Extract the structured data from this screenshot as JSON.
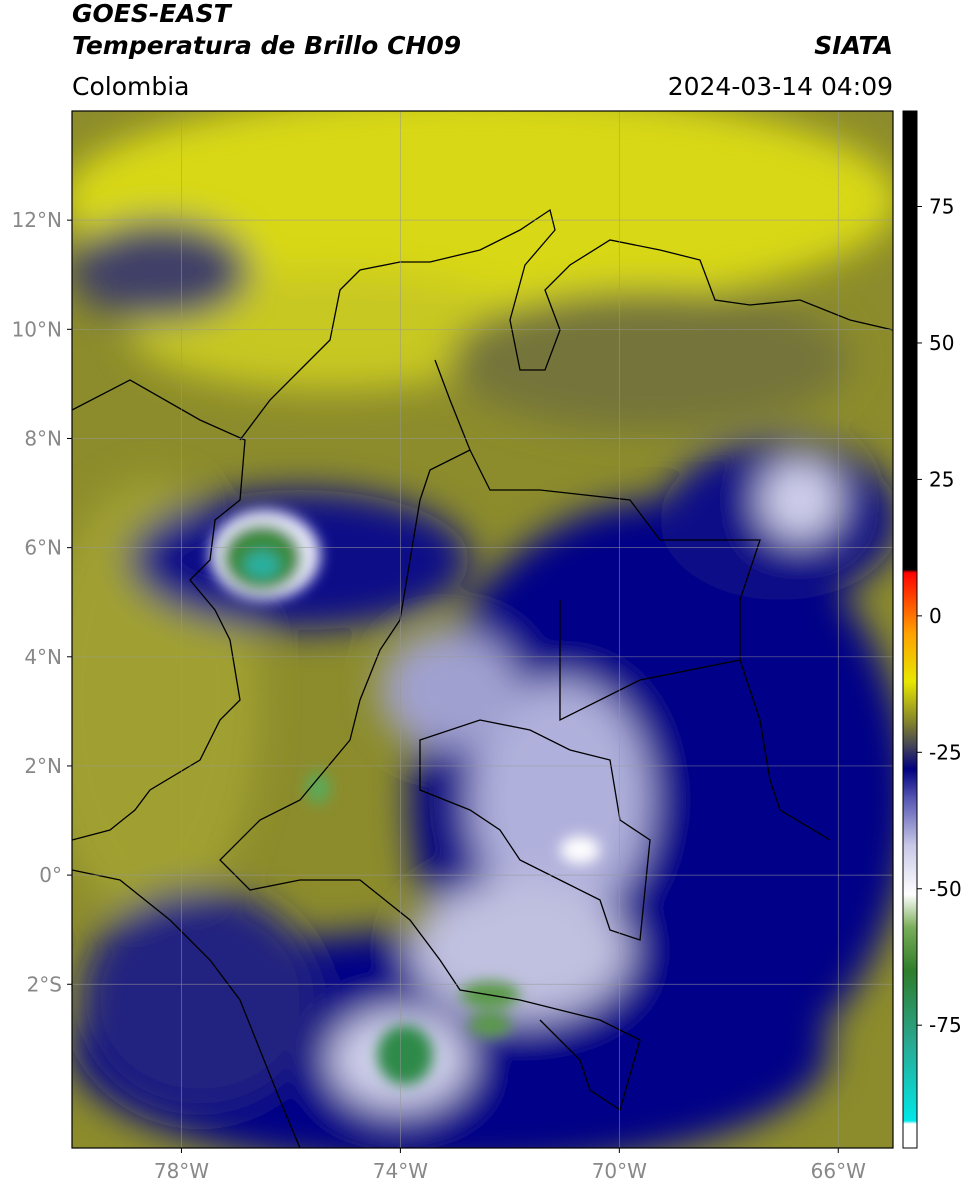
{
  "header": {
    "title": "GOES-EAST",
    "subtitle": "Temperatura de Brillo CH09",
    "source": "SIATA",
    "region": "Colombia",
    "datetime": "2024-03-14 04:09"
  },
  "map": {
    "xlim": [
      -80,
      -65
    ],
    "ylim": [
      -5,
      14
    ],
    "xticks": [
      {
        "value": -78,
        "label": "78°W"
      },
      {
        "value": -74,
        "label": "74°W"
      },
      {
        "value": -70,
        "label": "70°W"
      },
      {
        "value": -66,
        "label": "66°W"
      }
    ],
    "yticks": [
      {
        "value": -2,
        "label": "2°S"
      },
      {
        "value": 0,
        "label": "0°"
      },
      {
        "value": 2,
        "label": "2°N"
      },
      {
        "value": 4,
        "label": "4°N"
      },
      {
        "value": 6,
        "label": "6°N"
      },
      {
        "value": 8,
        "label": "8°N"
      },
      {
        "value": 10,
        "label": "10°N"
      },
      {
        "value": 12,
        "label": "12°N"
      }
    ],
    "grid": true
  },
  "colorbar": {
    "lim": [
      -97.5,
      92.5
    ],
    "ticks": [
      -75,
      -50,
      -25,
      0,
      25,
      50,
      75
    ],
    "stops": [
      {
        "value": -97.5,
        "color": "#ffffff"
      },
      {
        "value": -93,
        "color": "#ffffff"
      },
      {
        "value": -92.5,
        "color": "#00e8e8"
      },
      {
        "value": -78,
        "color": "#2aa890"
      },
      {
        "value": -65,
        "color": "#2e7d2a"
      },
      {
        "value": -57,
        "color": "#7aae5a"
      },
      {
        "value": -51,
        "color": "#ffffff"
      },
      {
        "value": -42,
        "color": "#c8c8e8"
      },
      {
        "value": -33,
        "color": "#5050b0"
      },
      {
        "value": -28,
        "color": "#000080"
      },
      {
        "value": -24,
        "color": "#40405a"
      },
      {
        "value": -20,
        "color": "#7a7a30"
      },
      {
        "value": -12,
        "color": "#e8e800"
      },
      {
        "value": -3,
        "color": "#ffa000"
      },
      {
        "value": 7,
        "color": "#ff1000"
      },
      {
        "value": 8,
        "color": "#ff0000"
      },
      {
        "value": 8.5,
        "color": "#000000"
      },
      {
        "value": 92.5,
        "color": "#000000"
      }
    ]
  }
}
